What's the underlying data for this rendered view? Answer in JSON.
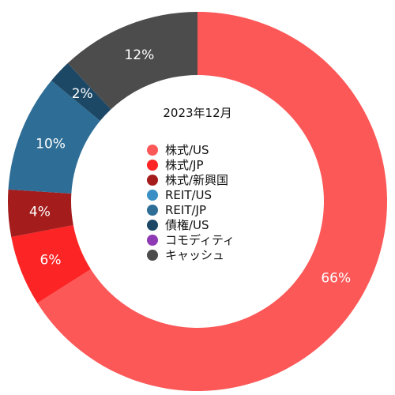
{
  "chart_data": {
    "type": "pie",
    "donut": true,
    "title": "2023年12月",
    "legend_placement": "center",
    "categories": [
      "株式/US",
      "株式/JP",
      "株式/新興国",
      "REIT/US",
      "REIT/JP",
      "債権/US",
      "コモディティ",
      "キャッシュ"
    ],
    "values": [
      66,
      6,
      4,
      0,
      10,
      2,
      0,
      12
    ],
    "value_labels": [
      "66%",
      "6%",
      "4%",
      "",
      "10%",
      "2%",
      "",
      "12%"
    ],
    "colors": [
      "#fc5858",
      "#fc2424",
      "#a41c1c",
      "#3a90c4",
      "#2e6e96",
      "#1c4866",
      "#8e3ab4",
      "#4c4c4c"
    ]
  }
}
